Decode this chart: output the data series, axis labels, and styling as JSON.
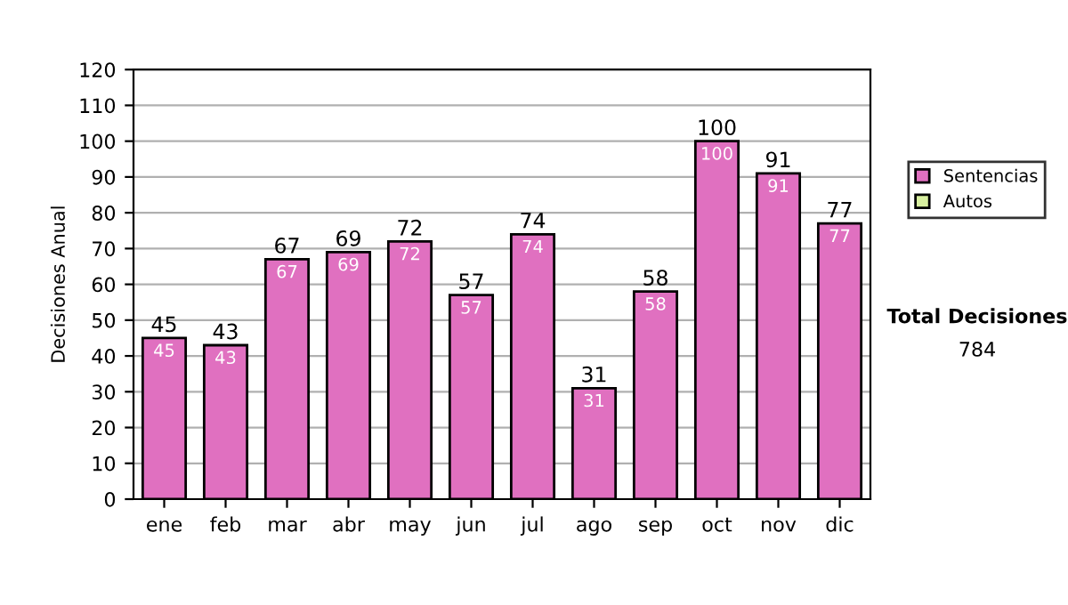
{
  "chart_data": {
    "type": "bar",
    "ylabel": "Decisiones Anual",
    "categories": [
      "ene",
      "feb",
      "mar",
      "abr",
      "may",
      "jun",
      "jul",
      "ago",
      "sep",
      "oct",
      "nov",
      "dic"
    ],
    "stacked": true,
    "series": [
      {
        "name": "Sentencias",
        "color": "#e070c0",
        "values": [
          45,
          43,
          67,
          69,
          72,
          57,
          74,
          31,
          58,
          100,
          91,
          77
        ],
        "value_labels": [
          "45",
          "43",
          "67",
          "69",
          "72",
          "57",
          "74",
          "31",
          "58",
          "100",
          "91",
          "77"
        ]
      },
      {
        "name": "Autos",
        "color": "#d8f0a0",
        "values": [
          null,
          null,
          null,
          null,
          null,
          null,
          null,
          null,
          null,
          null,
          null,
          null
        ]
      }
    ],
    "totals": [
      "45",
      "43",
      "67",
      "69",
      "72",
      "57",
      "74",
      "31",
      "58",
      "100",
      "91",
      "77"
    ],
    "ylim": [
      0,
      120
    ],
    "yticks": [
      0,
      10,
      20,
      30,
      40,
      50,
      60,
      70,
      80,
      90,
      100,
      110,
      120
    ],
    "grid": "y",
    "legend": "right",
    "annotations": [
      "Total Decisiones",
      "784"
    ]
  }
}
